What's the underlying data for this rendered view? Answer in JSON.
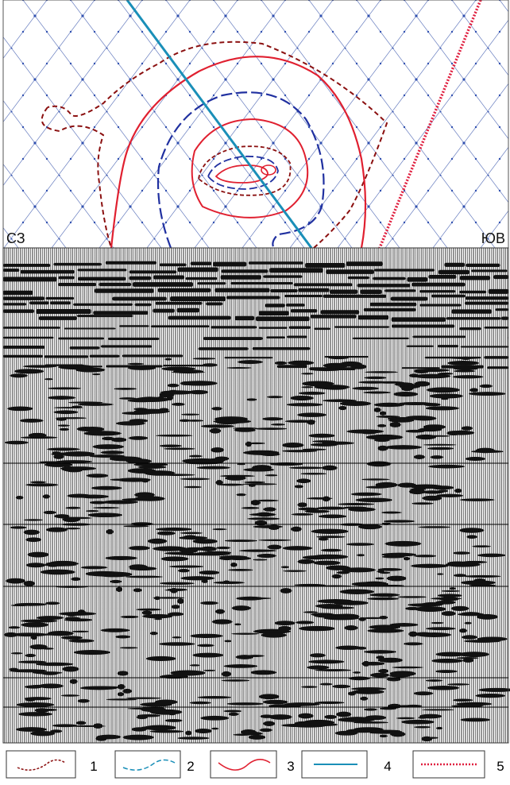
{
  "map": {
    "left_label": "СЗ",
    "right_label": "ЮВ"
  },
  "legend": {
    "items": [
      "1",
      "2",
      "3",
      "4",
      "5"
    ]
  }
}
